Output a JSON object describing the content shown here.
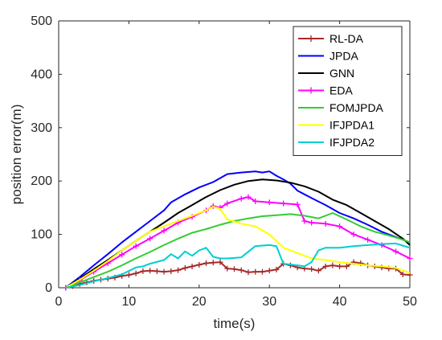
{
  "chart_data": {
    "type": "line",
    "xlabel": "time(s)",
    "ylabel": "position error(m)",
    "xlim": [
      0,
      50
    ],
    "ylim": [
      0,
      500
    ],
    "xticks": [
      0,
      10,
      20,
      30,
      40,
      50
    ],
    "yticks": [
      0,
      100,
      200,
      300,
      400,
      500
    ],
    "grid": false,
    "legend_position": "top-right",
    "series": [
      {
        "name": "RL-DA",
        "color": "#a52a2a",
        "marker": "plus",
        "x": [
          1,
          2,
          3,
          4,
          5,
          6,
          7,
          8,
          9,
          10,
          11,
          12,
          13,
          14,
          15,
          16,
          17,
          18,
          19,
          20,
          21,
          22,
          23,
          24,
          25,
          26,
          27,
          28,
          29,
          30,
          31,
          32,
          33,
          34,
          35,
          36,
          37,
          38,
          39,
          40,
          41,
          42,
          43,
          44,
          45,
          46,
          47,
          48,
          49,
          50
        ],
        "y": [
          0,
          3,
          7,
          10,
          13,
          15,
          17,
          19,
          22,
          24,
          27,
          31,
          32,
          31,
          30,
          31,
          33,
          37,
          40,
          43,
          46,
          47,
          48,
          36,
          35,
          33,
          29,
          30,
          30,
          32,
          34,
          45,
          42,
          38,
          36,
          35,
          32,
          40,
          42,
          40,
          40,
          48,
          46,
          42,
          40,
          38,
          36,
          36,
          25,
          24
        ]
      },
      {
        "name": "JPDA",
        "color": "#0000ff",
        "x": [
          1,
          3,
          5,
          7,
          9,
          11,
          13,
          15,
          16,
          18,
          20,
          22,
          24,
          26,
          28,
          29,
          30,
          31,
          32,
          33,
          34,
          36,
          38,
          40,
          42,
          44,
          46,
          48,
          50
        ],
        "y": [
          0,
          20,
          42,
          63,
          85,
          105,
          125,
          145,
          160,
          175,
          188,
          198,
          213,
          216,
          218,
          216,
          218,
          210,
          203,
          195,
          182,
          168,
          155,
          140,
          130,
          118,
          105,
          95,
          85
        ]
      },
      {
        "name": "GNN",
        "color": "#000000",
        "x": [
          1,
          3,
          5,
          7,
          9,
          11,
          13,
          15,
          17,
          19,
          21,
          23,
          25,
          27,
          29,
          31,
          33,
          35,
          37,
          39,
          41,
          43,
          45,
          47,
          49,
          50
        ],
        "y": [
          0,
          17,
          35,
          52,
          70,
          88,
          105,
          122,
          140,
          155,
          170,
          183,
          193,
          200,
          203,
          201,
          197,
          190,
          180,
          165,
          155,
          140,
          125,
          110,
          92,
          80
        ]
      },
      {
        "name": "EDA",
        "color": "#ff00ff",
        "marker": "plus",
        "x": [
          1,
          3,
          5,
          7,
          9,
          11,
          13,
          15,
          17,
          19,
          21,
          22,
          23,
          24,
          26,
          27,
          28,
          30,
          32,
          34,
          35,
          36,
          38,
          40,
          42,
          44,
          46,
          48,
          50
        ],
        "y": [
          0,
          14,
          30,
          46,
          62,
          78,
          92,
          107,
          122,
          133,
          145,
          153,
          150,
          158,
          167,
          170,
          162,
          160,
          158,
          156,
          125,
          122,
          120,
          115,
          100,
          90,
          80,
          68,
          55
        ]
      },
      {
        "name": "FOMJPDA",
        "color": "#32cd32",
        "x": [
          1,
          3,
          5,
          7,
          9,
          11,
          13,
          15,
          17,
          19,
          21,
          23,
          25,
          27,
          29,
          31,
          33,
          35,
          37,
          39,
          41,
          43,
          45,
          47,
          49,
          50
        ],
        "y": [
          0,
          10,
          20,
          30,
          42,
          55,
          67,
          80,
          92,
          103,
          110,
          118,
          125,
          130,
          134,
          136,
          138,
          135,
          130,
          140,
          128,
          115,
          105,
          98,
          90,
          85
        ]
      },
      {
        "name": "IFJPDA1",
        "color": "#ffff00",
        "x": [
          1,
          3,
          5,
          7,
          9,
          11,
          13,
          15,
          17,
          19,
          21,
          22,
          23,
          24,
          26,
          28,
          30,
          32,
          34,
          36,
          38,
          40,
          42,
          44,
          46,
          48,
          50
        ],
        "y": [
          0,
          15,
          32,
          50,
          70,
          88,
          105,
          115,
          125,
          135,
          145,
          152,
          148,
          128,
          120,
          115,
          100,
          75,
          65,
          55,
          52,
          48,
          45,
          42,
          40,
          37,
          28
        ]
      },
      {
        "name": "IFJPDA2",
        "color": "#00ced1",
        "x": [
          1,
          3,
          5,
          7,
          9,
          11,
          12,
          13,
          15,
          16,
          17,
          18,
          19,
          20,
          21,
          22,
          23,
          24,
          26,
          28,
          30,
          31,
          32,
          34,
          35,
          36,
          37,
          38,
          40,
          42,
          44,
          46,
          48,
          50
        ],
        "y": [
          0,
          5,
          12,
          18,
          25,
          38,
          40,
          45,
          52,
          63,
          55,
          68,
          60,
          70,
          75,
          58,
          55,
          55,
          57,
          78,
          80,
          78,
          45,
          42,
          40,
          48,
          70,
          75,
          75,
          78,
          80,
          82,
          83,
          75
        ]
      }
    ]
  }
}
